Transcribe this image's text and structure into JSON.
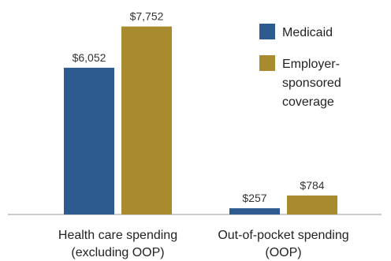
{
  "chart_data": {
    "type": "bar",
    "categories": [
      [
        "Health care spending",
        "(excluding OOP)"
      ],
      [
        "Out-of-pocket spending",
        "(OOP)"
      ]
    ],
    "series": [
      {
        "name": "Medicaid",
        "values": [
          6052,
          257
        ],
        "labels": [
          "$6,052",
          "$257"
        ],
        "color": "#2e5b8f"
      },
      {
        "name": "Employer-sponsored coverage",
        "legend_lines": [
          "Employer-",
          "sponsored",
          "coverage"
        ],
        "values": [
          7752,
          784
        ],
        "labels": [
          "$7,752",
          "$784"
        ],
        "color": "#a98b2f"
      }
    ],
    "ylim": [
      0,
      8000
    ],
    "grid": false,
    "legend_position": "top-right",
    "title": "",
    "xlabel": "",
    "ylabel": ""
  }
}
